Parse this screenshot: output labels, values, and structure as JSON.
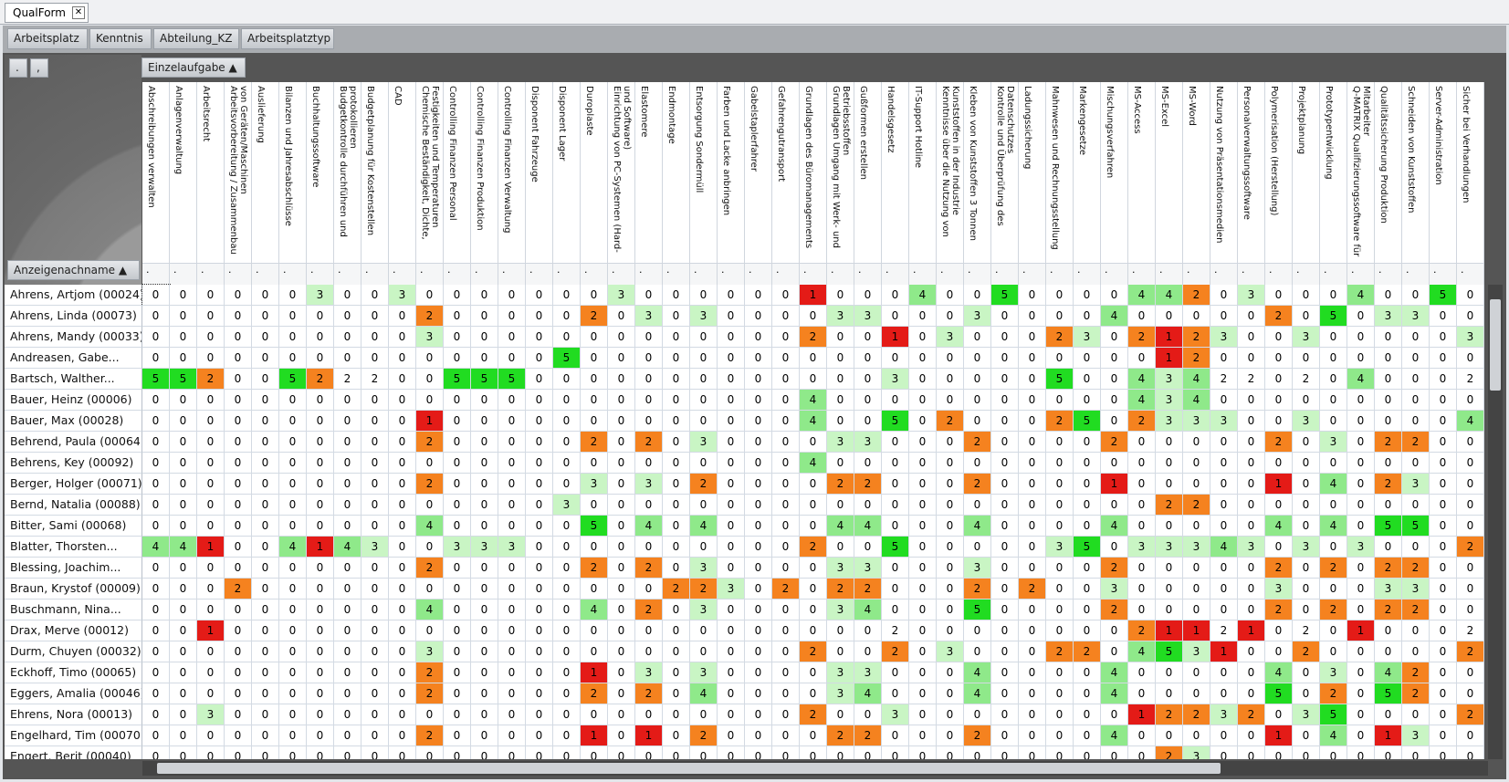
{
  "tab": "QualForm",
  "group_buttons": [
    "Arbeitsplatz",
    "Kenntnis",
    "Abteilung_KZ",
    "Arbeitsplatztyp"
  ],
  "corner_buttons": [
    ".",
    ","
  ],
  "column_group": "Einzelaufgabe ▲",
  "row_header": "Anzeigenachname ▲",
  "filter_text": ".",
  "columns": [
    "Abschreibungen verwalten",
    "Anlagenverwaltung",
    "Arbeitsrecht",
    "Arbeitsvorbereitung / Zusammenbau von Geräten/Maschinen",
    "Auslieferung",
    "Bilanzen und Jahresabschlüsse",
    "Buchhaltungssoftware",
    "Budgetkontrolle durchführen und protokollieren",
    "Budgetplanung für Kostenstellen",
    "CAD",
    "Chemische Beständigkeit, Dichte, Festigkeiten und Temperaturen",
    "Controlling Finanzen Personal",
    "Controlling Finanzen Produktion",
    "Controlling Finanzen Verwaltung",
    "Disponent Fahrzeuge",
    "Disponent Lager",
    "Duroplaste",
    "Einrichtung von PC-Systemen (Hard- und Software)",
    "Elastomere",
    "Endmontage",
    "Entsorgung Sondermüll",
    "Farben und Lacke anbringen",
    "Gabelstaplerfahrer",
    "Gefahrengutransport",
    "Grundlagen des Büromanagements",
    "Grundlagen Umgang mit Werk- und Betriebsstoffen",
    "Gußformen erstellen",
    "Handelsgesetz",
    "IT-Support Hotline",
    "Kenntnisse über die Nutzung von Kunststoffen in der Industrie",
    "Kleben von Kunststoffen 3 Tonnen",
    "Kontrolle und Überprüfung des Datenschutzes",
    "Ladungssicherung",
    "Mahnwesen und Rechnungsstellung",
    "Markengesetze",
    "Mischungsverfahren",
    "MS-Access",
    "MS-Excel",
    "MS-Word",
    "Nutzung von Präsentationsmedien",
    "Personalverwaltungssoftware",
    "Polymerisation (Herstellung)",
    "Projektplanung",
    "Prototypentwicklung",
    "Q-MATRIX Qualifizierungssoftware für Mitarbeiter",
    "Qualitätssicherung Produktion",
    "Schneiden von Kunststoffen",
    "Server-Administration",
    "Sicher bei Verhandlungen"
  ],
  "rows": [
    {
      "name": "Ahrens, Artjom (00024)",
      "values": [
        0,
        0,
        0,
        0,
        0,
        0,
        3,
        0,
        0,
        3,
        0,
        0,
        0,
        0,
        0,
        0,
        0,
        3,
        0,
        0,
        0,
        0,
        0,
        0,
        1,
        0,
        0,
        0,
        4,
        0,
        0,
        5,
        0,
        0,
        0,
        0,
        4,
        4,
        2,
        0,
        3,
        0,
        0,
        0,
        4,
        0,
        0,
        5,
        0
      ]
    },
    {
      "name": "Ahrens, Linda (00073)",
      "values": [
        0,
        0,
        0,
        0,
        0,
        0,
        0,
        0,
        0,
        0,
        2,
        0,
        0,
        0,
        0,
        0,
        2,
        0,
        3,
        0,
        3,
        0,
        0,
        0,
        0,
        3,
        3,
        0,
        0,
        0,
        3,
        0,
        0,
        0,
        0,
        4,
        0,
        0,
        0,
        0,
        0,
        2,
        0,
        5,
        0,
        3,
        3,
        0,
        0
      ]
    },
    {
      "name": "Ahrens, Mandy (00033)",
      "values": [
        0,
        0,
        0,
        0,
        0,
        0,
        0,
        0,
        0,
        0,
        3,
        0,
        0,
        0,
        0,
        0,
        0,
        0,
        0,
        0,
        0,
        0,
        0,
        0,
        2,
        0,
        0,
        1,
        0,
        3,
        0,
        0,
        0,
        2,
        3,
        0,
        2,
        1,
        2,
        3,
        0,
        0,
        3,
        0,
        0,
        0,
        0,
        0,
        3
      ]
    },
    {
      "name": "Andreasen, Gabe...",
      "values": [
        0,
        0,
        0,
        0,
        0,
        0,
        0,
        0,
        0,
        0,
        0,
        0,
        0,
        0,
        0,
        5,
        0,
        0,
        0,
        0,
        0,
        0,
        0,
        0,
        0,
        0,
        0,
        0,
        0,
        0,
        0,
        0,
        0,
        0,
        0,
        0,
        0,
        1,
        2,
        0,
        0,
        0,
        0,
        0,
        0,
        0,
        0,
        0,
        0
      ]
    },
    {
      "name": "Bartsch, Walther...",
      "values": [
        5,
        5,
        2,
        0,
        0,
        5,
        2,
        2,
        2,
        0,
        0,
        5,
        5,
        5,
        0,
        0,
        0,
        0,
        0,
        0,
        0,
        0,
        0,
        0,
        0,
        0,
        0,
        3,
        0,
        0,
        0,
        0,
        0,
        5,
        0,
        0,
        4,
        3,
        4,
        2,
        2,
        0,
        2,
        0,
        4,
        0,
        0,
        0,
        2
      ]
    },
    {
      "name": "Bauer, Heinz (00006)",
      "values": [
        0,
        0,
        0,
        0,
        0,
        0,
        0,
        0,
        0,
        0,
        0,
        0,
        0,
        0,
        0,
        0,
        0,
        0,
        0,
        0,
        0,
        0,
        0,
        0,
        4,
        0,
        0,
        0,
        0,
        0,
        0,
        0,
        0,
        0,
        0,
        0,
        4,
        3,
        4,
        0,
        0,
        0,
        0,
        0,
        0,
        0,
        0,
        0,
        0
      ]
    },
    {
      "name": "Bauer, Max (00028)",
      "values": [
        0,
        0,
        0,
        0,
        0,
        0,
        0,
        0,
        0,
        0,
        1,
        0,
        0,
        0,
        0,
        0,
        0,
        0,
        0,
        0,
        0,
        0,
        0,
        0,
        4,
        0,
        0,
        5,
        0,
        2,
        0,
        0,
        0,
        2,
        5,
        0,
        2,
        3,
        3,
        3,
        0,
        0,
        3,
        0,
        0,
        0,
        0,
        0,
        4
      ]
    },
    {
      "name": "Behrend, Paula (00064)",
      "values": [
        0,
        0,
        0,
        0,
        0,
        0,
        0,
        0,
        0,
        0,
        2,
        0,
        0,
        0,
        0,
        0,
        2,
        0,
        2,
        0,
        3,
        0,
        0,
        0,
        0,
        3,
        3,
        0,
        0,
        0,
        2,
        0,
        0,
        0,
        0,
        2,
        0,
        0,
        0,
        0,
        0,
        2,
        0,
        3,
        0,
        2,
        2,
        0,
        0
      ]
    },
    {
      "name": "Behrens, Key (00092)",
      "values": [
        0,
        0,
        0,
        0,
        0,
        0,
        0,
        0,
        0,
        0,
        0,
        0,
        0,
        0,
        0,
        0,
        0,
        0,
        0,
        0,
        0,
        0,
        0,
        0,
        4,
        0,
        0,
        0,
        0,
        0,
        0,
        0,
        0,
        0,
        0,
        0,
        0,
        0,
        0,
        0,
        0,
        0,
        0,
        0,
        0,
        0,
        0,
        0,
        0
      ]
    },
    {
      "name": "Berger, Holger (00071)",
      "values": [
        0,
        0,
        0,
        0,
        0,
        0,
        0,
        0,
        0,
        0,
        2,
        0,
        0,
        0,
        0,
        0,
        3,
        0,
        3,
        0,
        2,
        0,
        0,
        0,
        0,
        2,
        2,
        0,
        0,
        0,
        2,
        0,
        0,
        0,
        0,
        1,
        0,
        0,
        0,
        0,
        0,
        1,
        0,
        4,
        0,
        2,
        3,
        0,
        0
      ]
    },
    {
      "name": "Bernd, Natalia (00088)",
      "values": [
        0,
        0,
        0,
        0,
        0,
        0,
        0,
        0,
        0,
        0,
        0,
        0,
        0,
        0,
        0,
        3,
        0,
        0,
        0,
        0,
        0,
        0,
        0,
        0,
        0,
        0,
        0,
        0,
        0,
        0,
        0,
        0,
        0,
        0,
        0,
        0,
        0,
        2,
        2,
        0,
        0,
        0,
        0,
        0,
        0,
        0,
        0,
        0,
        0
      ]
    },
    {
      "name": "Bitter, Sami (00068)",
      "values": [
        0,
        0,
        0,
        0,
        0,
        0,
        0,
        0,
        0,
        0,
        4,
        0,
        0,
        0,
        0,
        0,
        5,
        0,
        4,
        0,
        4,
        0,
        0,
        0,
        0,
        4,
        4,
        0,
        0,
        0,
        4,
        0,
        0,
        0,
        0,
        4,
        0,
        0,
        0,
        0,
        0,
        4,
        0,
        4,
        0,
        5,
        5,
        0,
        0
      ]
    },
    {
      "name": "Blatter, Thorsten...",
      "values": [
        4,
        4,
        1,
        0,
        0,
        4,
        1,
        4,
        3,
        0,
        0,
        3,
        3,
        3,
        0,
        0,
        0,
        0,
        0,
        0,
        0,
        0,
        0,
        0,
        2,
        0,
        0,
        5,
        0,
        0,
        0,
        0,
        0,
        3,
        5,
        0,
        3,
        3,
        3,
        4,
        3,
        0,
        3,
        0,
        3,
        0,
        0,
        0,
        2
      ]
    },
    {
      "name": "Blessing, Joachim...",
      "values": [
        0,
        0,
        0,
        0,
        0,
        0,
        0,
        0,
        0,
        0,
        2,
        0,
        0,
        0,
        0,
        0,
        2,
        0,
        2,
        0,
        3,
        0,
        0,
        0,
        0,
        3,
        3,
        0,
        0,
        0,
        3,
        0,
        0,
        0,
        0,
        2,
        0,
        0,
        0,
        0,
        0,
        2,
        0,
        2,
        0,
        2,
        2,
        0,
        0
      ]
    },
    {
      "name": "Braun, Krystof (00009)",
      "values": [
        0,
        0,
        0,
        2,
        0,
        0,
        0,
        0,
        0,
        0,
        0,
        0,
        0,
        0,
        0,
        0,
        0,
        0,
        0,
        2,
        2,
        3,
        0,
        2,
        0,
        2,
        2,
        0,
        0,
        0,
        2,
        0,
        2,
        0,
        0,
        3,
        0,
        0,
        0,
        0,
        0,
        3,
        0,
        0,
        0,
        3,
        3,
        0,
        0
      ]
    },
    {
      "name": "Buschmann, Nina...",
      "values": [
        0,
        0,
        0,
        0,
        0,
        0,
        0,
        0,
        0,
        0,
        4,
        0,
        0,
        0,
        0,
        0,
        4,
        0,
        2,
        0,
        3,
        0,
        0,
        0,
        0,
        3,
        4,
        0,
        0,
        0,
        5,
        0,
        0,
        0,
        0,
        2,
        0,
        0,
        0,
        0,
        0,
        2,
        0,
        2,
        0,
        2,
        2,
        0,
        0
      ]
    },
    {
      "name": "Drax, Merve (00012)",
      "values": [
        0,
        0,
        1,
        0,
        0,
        0,
        0,
        0,
        0,
        0,
        0,
        0,
        0,
        0,
        0,
        0,
        0,
        0,
        0,
        0,
        0,
        0,
        0,
        0,
        0,
        0,
        0,
        2,
        0,
        0,
        0,
        0,
        0,
        0,
        0,
        0,
        2,
        1,
        1,
        2,
        1,
        0,
        2,
        0,
        1,
        0,
        0,
        0,
        2
      ]
    },
    {
      "name": "Durm, Chuyen (00032)",
      "values": [
        0,
        0,
        0,
        0,
        0,
        0,
        0,
        0,
        0,
        0,
        3,
        0,
        0,
        0,
        0,
        0,
        0,
        0,
        0,
        0,
        0,
        0,
        0,
        0,
        2,
        0,
        0,
        2,
        0,
        3,
        0,
        0,
        0,
        2,
        2,
        0,
        4,
        5,
        3,
        1,
        0,
        0,
        2,
        0,
        0,
        0,
        0,
        0,
        2
      ]
    },
    {
      "name": "Eckhoff, Timo (00065)",
      "values": [
        0,
        0,
        0,
        0,
        0,
        0,
        0,
        0,
        0,
        0,
        2,
        0,
        0,
        0,
        0,
        0,
        1,
        0,
        3,
        0,
        3,
        0,
        0,
        0,
        0,
        3,
        3,
        0,
        0,
        0,
        4,
        0,
        0,
        0,
        0,
        4,
        0,
        0,
        0,
        0,
        0,
        4,
        0,
        3,
        0,
        4,
        2,
        0,
        0
      ]
    },
    {
      "name": "Eggers, Amalia (00046)",
      "values": [
        0,
        0,
        0,
        0,
        0,
        0,
        0,
        0,
        0,
        0,
        2,
        0,
        0,
        0,
        0,
        0,
        2,
        0,
        2,
        0,
        4,
        0,
        0,
        0,
        0,
        3,
        4,
        0,
        0,
        0,
        4,
        0,
        0,
        0,
        0,
        4,
        0,
        0,
        0,
        0,
        0,
        5,
        0,
        2,
        0,
        5,
        2,
        0,
        0
      ]
    },
    {
      "name": "Ehrens, Nora (00013)",
      "values": [
        0,
        0,
        3,
        0,
        0,
        0,
        0,
        0,
        0,
        0,
        0,
        0,
        0,
        0,
        0,
        0,
        0,
        0,
        0,
        0,
        0,
        0,
        0,
        0,
        2,
        0,
        0,
        3,
        0,
        0,
        0,
        0,
        0,
        0,
        0,
        0,
        1,
        2,
        2,
        3,
        2,
        0,
        3,
        5,
        0,
        0,
        0,
        0,
        2
      ]
    },
    {
      "name": "Engelhard, Tim (00070)",
      "values": [
        0,
        0,
        0,
        0,
        0,
        0,
        0,
        0,
        0,
        0,
        2,
        0,
        0,
        0,
        0,
        0,
        1,
        0,
        1,
        0,
        2,
        0,
        0,
        0,
        0,
        2,
        2,
        0,
        0,
        0,
        2,
        0,
        0,
        0,
        0,
        4,
        0,
        0,
        0,
        0,
        0,
        1,
        0,
        4,
        0,
        1,
        3,
        0,
        0
      ]
    },
    {
      "name": "Engert, Berit (00040)",
      "values": [
        0,
        0,
        0,
        0,
        0,
        0,
        0,
        0,
        0,
        0,
        0,
        0,
        0,
        0,
        0,
        0,
        0,
        0,
        0,
        0,
        0,
        0,
        0,
        0,
        0,
        0,
        0,
        0,
        0,
        0,
        0,
        0,
        0,
        0,
        0,
        0,
        0,
        2,
        3,
        0,
        0,
        0,
        0,
        0,
        0,
        0,
        0,
        0,
        0
      ]
    }
  ],
  "cell_colors": {
    "1": "#e41b17",
    "2": "#f5821f",
    "3": "#c9f5c4",
    "4": "#8fe98a",
    "5": "#21dc21"
  },
  "uncolored_cells": [
    [
      4,
      7
    ],
    [
      4,
      8
    ],
    [
      4,
      39
    ],
    [
      4,
      40
    ],
    [
      4,
      42
    ],
    [
      4,
      48
    ],
    [
      16,
      27
    ],
    [
      16,
      39
    ],
    [
      16,
      42
    ],
    [
      16,
      48
    ]
  ]
}
